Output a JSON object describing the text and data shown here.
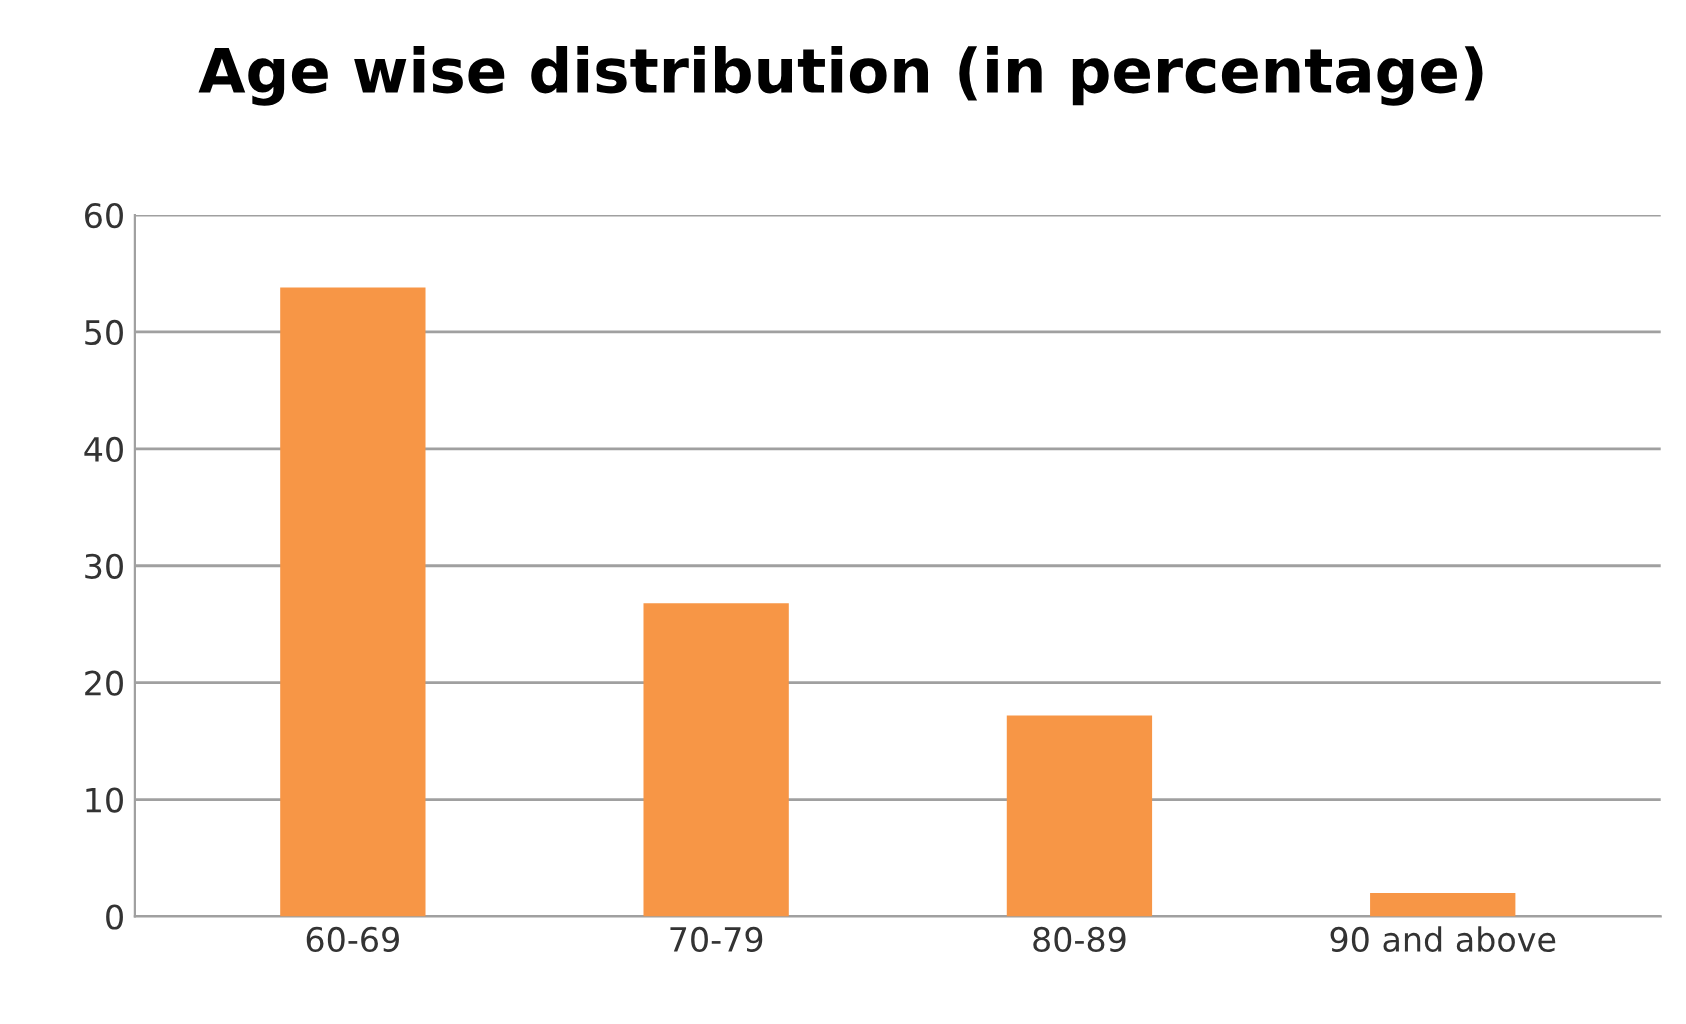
{
  "chart_data": {
    "type": "bar",
    "title": "Age wise distribution (in percentage)",
    "categories": [
      "60-69",
      "70-79",
      "80-89",
      "90 and above"
    ],
    "values": [
      53.8,
      26.8,
      17.2,
      2.0
    ],
    "color": "#f79646",
    "ylim": [
      0,
      60
    ],
    "yticks": [
      0,
      10,
      20,
      30,
      40,
      50,
      60
    ],
    "grid": "y",
    "legend": false
  }
}
